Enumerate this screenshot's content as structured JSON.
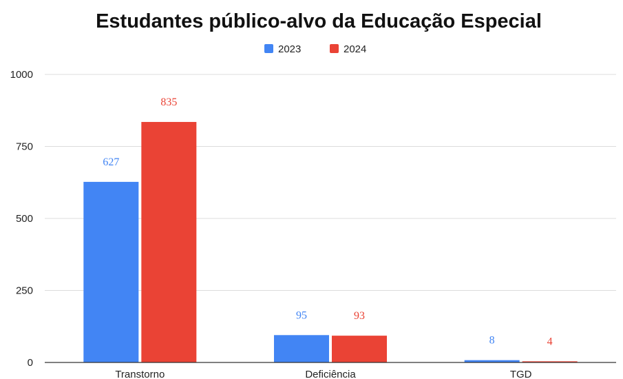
{
  "chart_data": {
    "type": "bar",
    "title": "Estudantes público-alvo da Educação Especial",
    "categories": [
      "Transtorno",
      "Deficiência",
      "TGD"
    ],
    "series": [
      {
        "name": "2023",
        "color": "#4285f4",
        "values": [
          627,
          95,
          8
        ]
      },
      {
        "name": "2024",
        "color": "#ea4335",
        "values": [
          835,
          93,
          4
        ]
      }
    ],
    "yticks": [
      "0",
      "250",
      "500",
      "750",
      "1000"
    ],
    "ylim": [
      0,
      1000
    ],
    "grid": true,
    "legend": "top-center",
    "data_labels": true
  }
}
